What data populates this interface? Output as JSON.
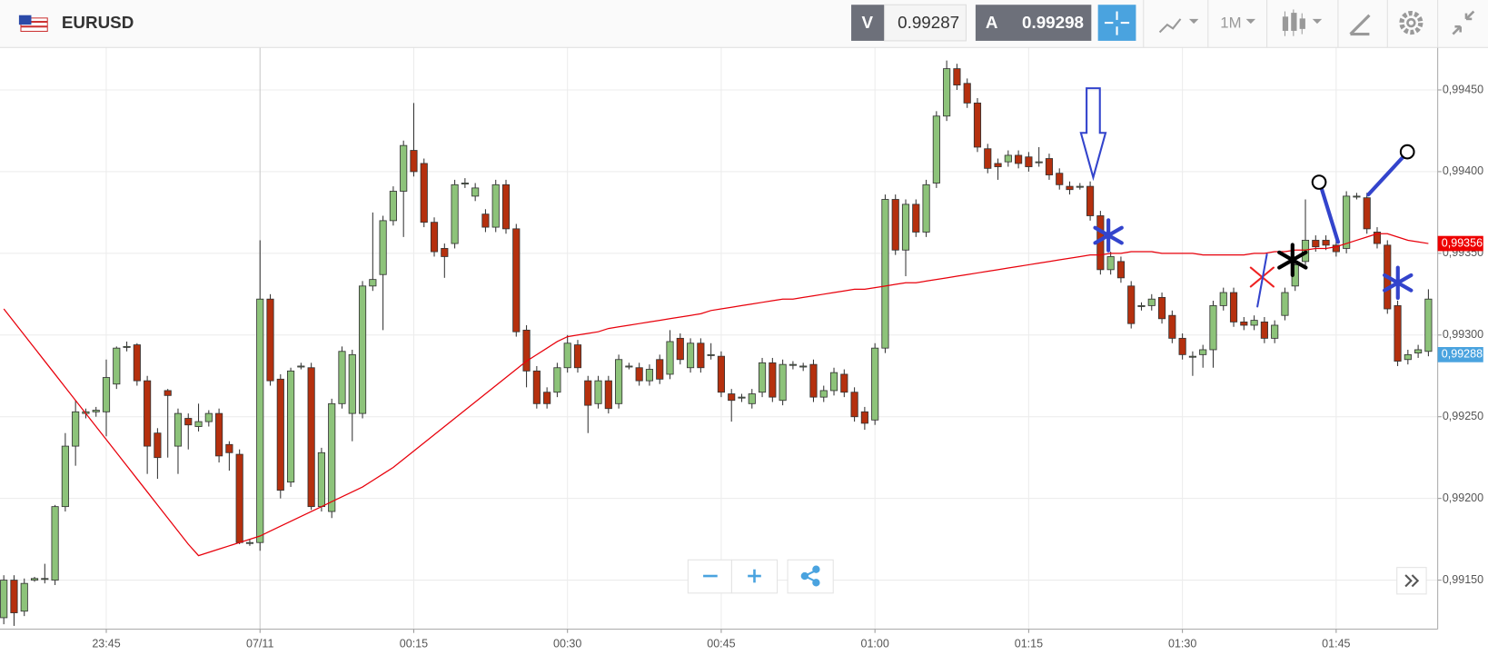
{
  "toolbar": {
    "symbol": "EURUSD",
    "bid_label": "V",
    "bid": 0.99287,
    "ask_label": "A",
    "ask": 0.99298,
    "timeframe": "1M"
  },
  "chart_data": {
    "type": "candlestick",
    "categories": [
      null,
      null,
      null,
      null,
      null,
      null,
      null,
      null,
      null,
      null,
      "23:45",
      null,
      null,
      null,
      null,
      null,
      null,
      null,
      null,
      null,
      null,
      null,
      null,
      null,
      null,
      "07/11",
      null,
      null,
      null,
      null,
      null,
      null,
      null,
      null,
      null,
      null,
      null,
      null,
      null,
      null,
      "00:15",
      null,
      null,
      null,
      null,
      null,
      null,
      null,
      null,
      null,
      null,
      null,
      null,
      null,
      null,
      "00:30",
      null,
      null,
      null,
      null,
      null,
      null,
      null,
      null,
      null,
      null,
      null,
      null,
      null,
      null,
      "00:45",
      null,
      null,
      null,
      null,
      null,
      null,
      null,
      null,
      null,
      null,
      null,
      null,
      null,
      null,
      "01:00",
      null,
      null,
      null,
      null,
      null,
      null,
      null,
      null,
      null,
      null,
      null,
      null,
      null,
      null,
      "01:15",
      null,
      null,
      null,
      null,
      null,
      null,
      null,
      null,
      null,
      null,
      null,
      null,
      null,
      null,
      "01:30",
      null,
      null,
      null,
      null,
      null,
      null,
      null,
      null,
      null,
      null,
      null,
      null,
      null,
      null,
      "01:45",
      null,
      null,
      null,
      null,
      null,
      null,
      null,
      null,
      null
    ],
    "open": [
      0.99127,
      0.9915,
      0.99131,
      0.9915,
      0.99151,
      0.9915,
      0.99195,
      0.99232,
      0.99252,
      0.99253,
      0.99253,
      0.9927,
      0.99293,
      0.99294,
      0.99272,
      0.9924,
      0.99266,
      0.99232,
      0.99249,
      0.99244,
      0.99247,
      0.99252,
      0.99233,
      0.99227,
      0.99173,
      0.99173,
      0.99322,
      0.99273,
      0.9921,
      0.99281,
      0.9928,
      0.99195,
      0.99192,
      0.99258,
      0.99252,
      0.99252,
      0.9933,
      0.99337,
      0.9937,
      0.99388,
      0.99413,
      0.99405,
      0.99369,
      0.99353,
      0.99356,
      0.99393,
      0.99385,
      0.99374,
      0.99366,
      0.99392,
      0.99365,
      0.99303,
      0.99278,
      0.99265,
      0.99265,
      0.9928,
      0.99294,
      0.99272,
      0.99258,
      0.99272,
      0.99258,
      0.99281,
      0.9928,
      0.99272,
      0.99285,
      0.99276,
      0.99298,
      0.9928,
      0.99295,
      0.99288,
      0.99287,
      0.99264,
      0.99262,
      0.99258,
      0.99265,
      0.99283,
      0.9926,
      0.99282,
      0.99281,
      0.99282,
      0.99262,
      0.99266,
      0.99276,
      0.99265,
      0.99253,
      0.99248,
      0.99292,
      0.99383,
      0.99352,
      0.9938,
      0.99363,
      0.99393,
      0.99434,
      0.99463,
      0.99454,
      0.99442,
      0.99414,
      0.99405,
      0.99406,
      0.9941,
      0.99409,
      0.99406,
      0.99408,
      0.99399,
      0.99391,
      0.99391,
      0.99391,
      0.99373,
      0.9934,
      0.99345,
      0.9933,
      0.99318,
      0.99318,
      0.99323,
      0.99312,
      0.99298,
      0.99287,
      0.99288,
      0.99291,
      0.99318,
      0.99326,
      0.99308,
      0.99306,
      0.99308,
      0.99298,
      0.99312,
      0.9933,
      0.99345,
      0.99358,
      0.99358,
      0.99355,
      0.99353,
      0.99385,
      0.99384,
      0.99363,
      0.99355,
      0.99318,
      0.99285,
      0.99289,
      0.9929
    ],
    "high": [
      0.99153,
      0.99153,
      0.99151,
      0.99152,
      0.9916,
      0.99196,
      0.9924,
      0.9926,
      0.99255,
      0.99256,
      0.99285,
      0.99293,
      0.99296,
      0.99295,
      0.99275,
      0.99243,
      0.99267,
      0.99255,
      0.99252,
      0.99258,
      0.99254,
      0.99255,
      0.99235,
      0.9923,
      0.99175,
      0.99358,
      0.99325,
      0.99276,
      0.9928,
      0.99283,
      0.99283,
      0.99231,
      0.99261,
      0.99293,
      0.99291,
      0.99333,
      0.99375,
      0.99373,
      0.99391,
      0.99419,
      0.99442,
      0.99408,
      0.99372,
      0.99356,
      0.99395,
      0.99396,
      0.99393,
      0.99377,
      0.99395,
      0.99395,
      0.99368,
      0.99306,
      0.99281,
      0.99268,
      0.99283,
      0.993,
      0.99297,
      0.99275,
      0.99275,
      0.99275,
      0.99288,
      0.99283,
      0.99283,
      0.99282,
      0.99288,
      0.99303,
      0.99301,
      0.99298,
      0.99298,
      0.99295,
      0.9929,
      0.99267,
      0.99264,
      0.99267,
      0.99286,
      0.99286,
      0.99285,
      0.99284,
      0.99283,
      0.99285,
      0.99269,
      0.9928,
      0.99279,
      0.99268,
      0.99256,
      0.99295,
      0.99386,
      0.99386,
      0.99383,
      0.99383,
      0.99395,
      0.99437,
      0.99468,
      0.99466,
      0.99457,
      0.99445,
      0.99417,
      0.99408,
      0.99413,
      0.99413,
      0.99412,
      0.99415,
      0.99411,
      0.99402,
      0.99394,
      0.99393,
      0.99394,
      0.99376,
      0.99351,
      0.99348,
      0.99333,
      0.9932,
      0.99325,
      0.99326,
      0.99315,
      0.99301,
      0.9929,
      0.99294,
      0.99321,
      0.99329,
      0.99329,
      0.99311,
      0.99312,
      0.99311,
      0.99309,
      0.99329,
      0.99346,
      0.99383,
      0.99361,
      0.99361,
      0.99358,
      0.99388,
      0.99387,
      0.99387,
      0.99366,
      0.99358,
      0.99321,
      0.99291,
      0.99294,
      0.99328
    ],
    "low": [
      0.99123,
      0.99122,
      0.99128,
      0.99149,
      0.99148,
      0.99147,
      0.99192,
      0.9922,
      0.99249,
      0.9925,
      0.99238,
      0.99267,
      0.9929,
      0.99269,
      0.99215,
      0.99212,
      0.99225,
      0.99215,
      0.9923,
      0.99241,
      0.99244,
      0.99222,
      0.99217,
      0.99172,
      0.99171,
      0.99168,
      0.99269,
      0.992,
      0.99207,
      0.99279,
      0.99193,
      0.99192,
      0.99188,
      0.99255,
      0.99235,
      0.99249,
      0.99327,
      0.99303,
      0.99367,
      0.9936,
      0.99397,
      0.99366,
      0.99348,
      0.99335,
      0.99353,
      0.9939,
      0.99382,
      0.99363,
      0.99363,
      0.99362,
      0.99299,
      0.99268,
      0.99255,
      0.99255,
      0.99262,
      0.99277,
      0.99277,
      0.9924,
      0.99255,
      0.99252,
      0.99255,
      0.99279,
      0.99269,
      0.99269,
      0.9927,
      0.99273,
      0.99282,
      0.99277,
      0.99277,
      0.99285,
      0.99262,
      0.99247,
      0.99259,
      0.99255,
      0.99262,
      0.99259,
      0.99257,
      0.99279,
      0.99278,
      0.99259,
      0.99259,
      0.99263,
      0.99262,
      0.99247,
      0.99242,
      0.99245,
      0.99289,
      0.99349,
      0.99336,
      0.9936,
      0.9936,
      0.9939,
      0.99431,
      0.9945,
      0.99439,
      0.99412,
      0.99399,
      0.99395,
      0.99403,
      0.99402,
      0.994,
      0.99403,
      0.99395,
      0.99389,
      0.99386,
      0.99389,
      0.9937,
      0.99337,
      0.99337,
      0.99332,
      0.99304,
      0.99315,
      0.99315,
      0.99307,
      0.99295,
      0.99285,
      0.99275,
      0.9928,
      0.9928,
      0.99315,
      0.99305,
      0.99303,
      0.99303,
      0.99295,
      0.99295,
      0.99309,
      0.99327,
      0.99342,
      0.99351,
      0.99352,
      0.99348,
      0.9935,
      0.99383,
      0.99362,
      0.99353,
      0.99313,
      0.99281,
      0.99282,
      0.99286,
      0.99287
    ],
    "close": [
      0.9915,
      0.9913,
      0.99148,
      0.99151,
      0.99151,
      0.99195,
      0.99232,
      0.99253,
      0.99253,
      0.99254,
      0.99274,
      0.99292,
      0.99293,
      0.99272,
      0.99232,
      0.99225,
      0.99263,
      0.99252,
      0.99245,
      0.99247,
      0.99252,
      0.99226,
      0.99228,
      0.99173,
      0.99173,
      0.99322,
      0.99272,
      0.99205,
      0.99278,
      0.99281,
      0.99195,
      0.99228,
      0.99258,
      0.9929,
      0.99288,
      0.9933,
      0.99334,
      0.9937,
      0.99388,
      0.99416,
      0.994,
      0.99369,
      0.99351,
      0.99348,
      0.99392,
      0.99393,
      0.9939,
      0.99366,
      0.99392,
      0.99365,
      0.99302,
      0.99278,
      0.99258,
      0.99258,
      0.9928,
      0.99295,
      0.9928,
      0.99257,
      0.99272,
      0.99255,
      0.99285,
      0.99281,
      0.99272,
      0.99279,
      0.99273,
      0.99296,
      0.99285,
      0.99295,
      0.9928,
      0.99288,
      0.99265,
      0.9926,
      0.99262,
      0.99264,
      0.99283,
      0.99262,
      0.99282,
      0.99282,
      0.99281,
      0.99262,
      0.99266,
      0.99277,
      0.99265,
      0.9925,
      0.99246,
      0.99292,
      0.99383,
      0.99352,
      0.9938,
      0.99363,
      0.99392,
      0.99434,
      0.99463,
      0.99453,
      0.99442,
      0.99415,
      0.99402,
      0.99403,
      0.9941,
      0.99405,
      0.99403,
      0.99406,
      0.99398,
      0.99392,
      0.99389,
      0.99391,
      0.99373,
      0.9934,
      0.99348,
      0.99335,
      0.99307,
      0.99318,
      0.99322,
      0.9931,
      0.99298,
      0.99288,
      0.99287,
      0.99291,
      0.99318,
      0.99326,
      0.99308,
      0.99306,
      0.99309,
      0.99298,
      0.99306,
      0.99326,
      0.99343,
      0.99358,
      0.99354,
      0.99355,
      0.99351,
      0.99385,
      0.99385,
      0.99365,
      0.99356,
      0.99316,
      0.99284,
      0.99288,
      0.99291,
      0.99322
    ],
    "up_color": "#8dc37a",
    "down_color": "#b5300e",
    "moving_average": {
      "color": "#e8000b",
      "values": [
        0.99316,
        0.99308,
        0.993,
        0.99292,
        0.99284,
        0.99276,
        0.99268,
        0.9926,
        0.99252,
        0.99244,
        0.99236,
        0.99228,
        0.9922,
        0.99212,
        0.99204,
        0.99196,
        0.99188,
        0.9918,
        0.99172,
        0.99165,
        0.99167,
        0.99169,
        0.99171,
        0.99173,
        0.99175,
        0.99177,
        0.9918,
        0.99183,
        0.99186,
        0.99189,
        0.99192,
        0.99195,
        0.99198,
        0.99201,
        0.99204,
        0.99207,
        0.99211,
        0.99215,
        0.99219,
        0.99224,
        0.99229,
        0.99234,
        0.99239,
        0.99244,
        0.99249,
        0.99254,
        0.99259,
        0.99264,
        0.99269,
        0.99274,
        0.99279,
        0.99284,
        0.99288,
        0.99292,
        0.99296,
        0.99299,
        0.993,
        0.99301,
        0.99302,
        0.99304,
        0.99305,
        0.99306,
        0.99307,
        0.99308,
        0.99309,
        0.9931,
        0.99311,
        0.99312,
        0.99313,
        0.99315,
        0.99316,
        0.99317,
        0.99318,
        0.99319,
        0.9932,
        0.99321,
        0.99322,
        0.99322,
        0.99323,
        0.99324,
        0.99325,
        0.99326,
        0.99327,
        0.99328,
        0.99328,
        0.99329,
        0.9933,
        0.99331,
        0.99332,
        0.99332,
        0.99333,
        0.99334,
        0.99335,
        0.99336,
        0.99337,
        0.99338,
        0.99339,
        0.9934,
        0.99341,
        0.99342,
        0.99343,
        0.99344,
        0.99345,
        0.99346,
        0.99347,
        0.99348,
        0.99349,
        0.99349,
        0.9935,
        0.9935,
        0.99351,
        0.99351,
        0.99351,
        0.9935,
        0.9935,
        0.9935,
        0.9935,
        0.99349,
        0.99349,
        0.99349,
        0.99349,
        0.99349,
        0.9935,
        0.9935,
        0.99351,
        0.99351,
        0.99352,
        0.99352,
        0.99353,
        0.99353,
        0.99354,
        0.99356,
        0.99358,
        0.9936,
        0.99362,
        0.99362,
        0.9936,
        0.99358,
        0.99357,
        0.99356
      ]
    },
    "ylim": [
      0.9912,
      0.99476
    ],
    "yticks": [
      {
        "value": 0.9915,
        "label": "0,99150"
      },
      {
        "value": 0.992,
        "label": "0,99200"
      },
      {
        "value": 0.9925,
        "label": "0,99250"
      },
      {
        "value": 0.993,
        "label": "0,99300"
      },
      {
        "value": 0.9935,
        "label": "0,99350"
      },
      {
        "value": 0.994,
        "label": "0,99400"
      },
      {
        "value": 0.9945,
        "label": "0,99450"
      }
    ],
    "grid": true,
    "price_tags": [
      {
        "value": 0.99356,
        "label": "0,99356",
        "color": "#ee0000"
      },
      {
        "value": 0.99288,
        "label": "0,99288",
        "color": "#4aa3df"
      }
    ]
  }
}
